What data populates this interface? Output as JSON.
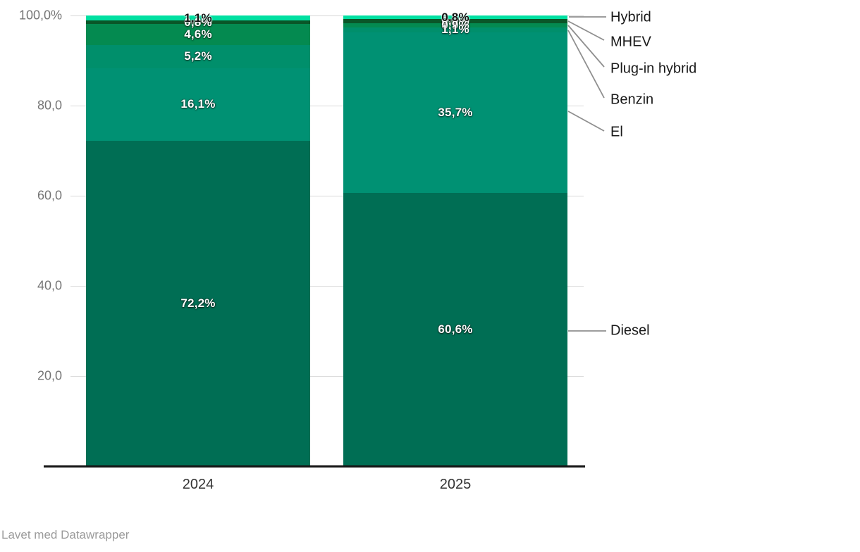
{
  "chart_data": {
    "type": "bar",
    "stacked": true,
    "unit": "%",
    "title": "",
    "categories": [
      "2024",
      "2025"
    ],
    "series": [
      {
        "name": "Hybrid",
        "color": "#00e0a1",
        "label_color": "#111111",
        "values": [
          1.1,
          0.8
        ],
        "labels": [
          "1,1%",
          "0,8%"
        ]
      },
      {
        "name": "MHEV",
        "color": "#0a5628",
        "label_color": "#ffffff",
        "values": [
          0.8,
          0.9
        ],
        "labels": [
          "0,8%",
          "0,9%"
        ]
      },
      {
        "name": "Plug-in hybrid",
        "color": "#048a50",
        "label_color": "#ffffff",
        "values": [
          4.6,
          0.9
        ],
        "labels": [
          "4,6%",
          "0,9%"
        ]
      },
      {
        "name": "Benzin",
        "color": "#008f6b",
        "label_color": "#ffffff",
        "values": [
          5.2,
          1.1
        ],
        "labels": [
          "5,2%",
          "1,1%"
        ]
      },
      {
        "name": "El",
        "color": "#009173",
        "label_color": "#ffffff",
        "values": [
          16.1,
          35.7
        ],
        "labels": [
          "16,1%",
          "35,7%"
        ]
      },
      {
        "name": "Diesel",
        "color": "#006e54",
        "label_color": "#ffffff",
        "values": [
          72.2,
          60.6
        ],
        "labels": [
          "72,2%",
          "60,6%"
        ]
      }
    ],
    "y_axis": {
      "min": 0,
      "max": 100,
      "ticks": [
        {
          "value": 100,
          "label": "100,0%"
        },
        {
          "value": 80,
          "label": "80,0"
        },
        {
          "value": 60,
          "label": "60,0"
        },
        {
          "value": 40,
          "label": "40,0"
        },
        {
          "value": 20,
          "label": "20,0"
        }
      ]
    },
    "grid": true,
    "legend_position": "right"
  },
  "footer": {
    "attribution": "Lavet med Datawrapper"
  }
}
